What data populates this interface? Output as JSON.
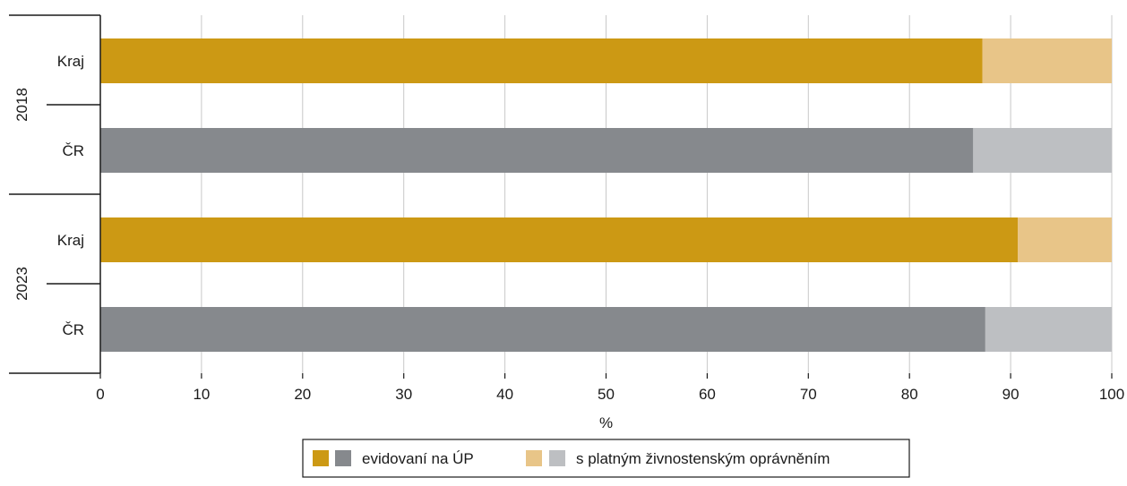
{
  "chart_data": {
    "type": "bar",
    "orientation": "horizontal",
    "stacked": true,
    "groups": [
      {
        "label": "2018",
        "categories": [
          "Kraj",
          "ČR"
        ]
      },
      {
        "label": "2023",
        "categories": [
          "Kraj",
          "ČR"
        ]
      }
    ],
    "rows": [
      {
        "group": "2018",
        "category": "Kraj",
        "palette": "gold",
        "values": [
          87.2,
          12.8
        ]
      },
      {
        "group": "2018",
        "category": "ČR",
        "palette": "gray",
        "values": [
          86.3,
          13.7
        ]
      },
      {
        "group": "2023",
        "category": "Kraj",
        "palette": "gold",
        "values": [
          90.7,
          9.3
        ]
      },
      {
        "group": "2023",
        "category": "ČR",
        "palette": "gray",
        "values": [
          87.5,
          12.5
        ]
      }
    ],
    "series": [
      {
        "name": "evidovaní na ÚP"
      },
      {
        "name": "s platným živnostenským oprávněním"
      }
    ],
    "xlim": [
      0,
      100
    ],
    "xticks": [
      "0",
      "10",
      "20",
      "30",
      "40",
      "50",
      "60",
      "70",
      "80",
      "90",
      "100"
    ],
    "xlabel": "%",
    "grid": true,
    "legend_position": "bottom-center",
    "colors": {
      "gold_dark": "#CC9914",
      "gold_light": "#E8C588",
      "gray_dark": "#86898D",
      "gray_light": "#BDBFC2",
      "grid": "#C8C8C8",
      "axis": "#1a1a1a"
    }
  }
}
